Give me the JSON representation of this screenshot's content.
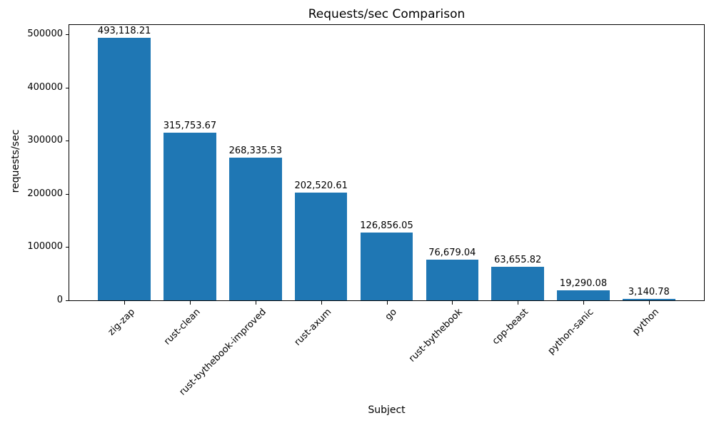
{
  "chart_data": {
    "type": "bar",
    "title": "Requests/sec Comparison",
    "xlabel": "Subject",
    "ylabel": "requests/sec",
    "categories": [
      "zig-zap",
      "rust-clean",
      "rust-bythebook-improved",
      "rust-axum",
      "go",
      "rust-bythebook",
      "cpp-beast",
      "python-sanic",
      "python"
    ],
    "values": [
      493118.21,
      315753.67,
      268335.53,
      202520.61,
      126856.05,
      76679.04,
      63655.82,
      19290.08,
      3140.78
    ],
    "value_labels": [
      "493,118.21",
      "315,753.67",
      "268,335.53",
      "202,520.61",
      "126,856.05",
      "76,679.04",
      "63,655.82",
      "19,290.08",
      "3,140.78"
    ],
    "yticks": [
      0,
      100000,
      200000,
      300000,
      400000,
      500000
    ],
    "ytick_labels": [
      "0",
      "100000",
      "200000",
      "300000",
      "400000",
      "500000"
    ],
    "ylim": [
      0,
      517774
    ],
    "bar_color": "#1f77b4",
    "grid": false,
    "legend_position": "none"
  }
}
